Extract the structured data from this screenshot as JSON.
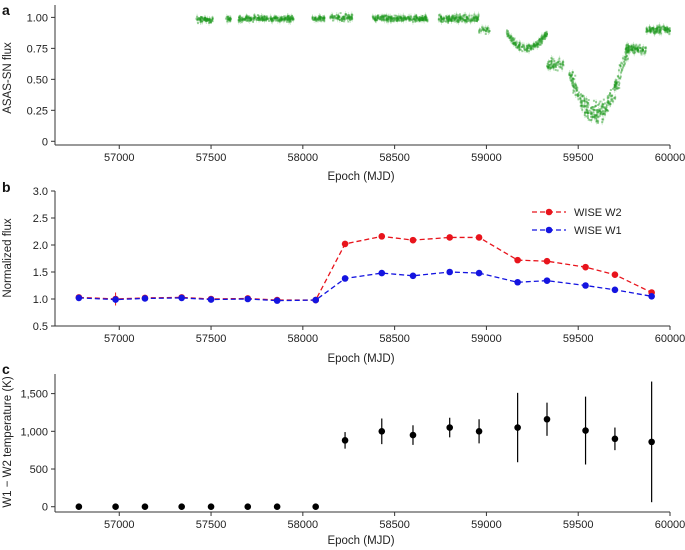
{
  "chart_data": [
    {
      "panel": "a",
      "type": "scatter",
      "xlabel": "Epoch (MJD)",
      "ylabel": "ASAS-SN flux",
      "xlim": [
        56650,
        60000
      ],
      "ylim": [
        -0.03,
        1.1
      ],
      "xticks": [
        57000,
        57500,
        58000,
        58500,
        59000,
        59500,
        60000
      ],
      "xtick_labels": [
        "57000",
        "57500",
        "58000",
        "58500",
        "59000",
        "59500",
        "60000"
      ],
      "yticks": [
        0,
        0.25,
        0.5,
        0.75,
        1.0
      ],
      "ytick_labels": [
        "0",
        "0.25",
        "0.50",
        "0.75",
        "1.00"
      ],
      "color": "#1f9a1f",
      "segments": [
        {
          "x0": 57420,
          "x1": 57510,
          "center": 0.98,
          "noise": 0.035,
          "n": 70,
          "dip": 0
        },
        {
          "x0": 57580,
          "x1": 57610,
          "center": 0.99,
          "noise": 0.03,
          "n": 20,
          "dip": 0
        },
        {
          "x0": 57650,
          "x1": 57950,
          "center": 0.99,
          "noise": 0.035,
          "n": 230,
          "dip": 0
        },
        {
          "x0": 58050,
          "x1": 58120,
          "center": 0.99,
          "noise": 0.03,
          "n": 50,
          "dip": 0
        },
        {
          "x0": 58150,
          "x1": 58270,
          "center": 1.0,
          "noise": 0.04,
          "n": 80,
          "dip": 0
        },
        {
          "x0": 58380,
          "x1": 58680,
          "center": 0.99,
          "noise": 0.035,
          "n": 240,
          "dip": 0
        },
        {
          "x0": 58740,
          "x1": 58960,
          "center": 0.99,
          "noise": 0.04,
          "n": 170,
          "dip": 0
        },
        {
          "x0": 58960,
          "x1": 59020,
          "center": 0.9,
          "noise": 0.04,
          "n": 25,
          "dip": 0
        },
        {
          "x0": 59110,
          "x1": 59330,
          "center": 0.87,
          "noise": 0.05,
          "n": 170,
          "dip": 0.12
        },
        {
          "x0": 59330,
          "x1": 59420,
          "center": 0.62,
          "noise": 0.07,
          "n": 60,
          "dip": 0
        },
        {
          "x0": 59450,
          "x1": 59780,
          "center": 0.35,
          "noise": 0.12,
          "n": 300,
          "dip": 0.2
        },
        {
          "x0": 59760,
          "x1": 59870,
          "center": 0.74,
          "noise": 0.05,
          "n": 90,
          "dip": 0
        },
        {
          "x0": 59870,
          "x1": 60000,
          "center": 0.9,
          "noise": 0.05,
          "n": 110,
          "dip": 0
        }
      ]
    },
    {
      "panel": "b",
      "type": "line",
      "xlabel": "Epoch (MJD)",
      "ylabel": "Normalized flux",
      "xlim": [
        56650,
        60000
      ],
      "ylim": [
        0.5,
        3.0
      ],
      "xticks": [
        57000,
        57500,
        58000,
        58500,
        59000,
        59500,
        60000
      ],
      "xtick_labels": [
        "57000",
        "57500",
        "58000",
        "58500",
        "59000",
        "59500",
        "60000"
      ],
      "yticks": [
        0.5,
        1.0,
        1.5,
        2.0,
        2.5,
        3.0
      ],
      "ytick_labels": [
        "0.5",
        "1.0",
        "1.5",
        "2.0",
        "2.5",
        "3.0"
      ],
      "legend_position": "top-right",
      "x": [
        56780,
        56980,
        57140,
        57340,
        57500,
        57700,
        57860,
        58070,
        58230,
        58430,
        58600,
        58800,
        58960,
        59170,
        59330,
        59540,
        59700,
        59900
      ],
      "series": [
        {
          "name": "WISE W2",
          "color": "#e8141c",
          "values": [
            1.03,
            1.0,
            1.02,
            1.03,
            1.0,
            1.01,
            0.98,
            0.98,
            2.02,
            2.16,
            2.09,
            2.14,
            2.14,
            1.72,
            1.7,
            1.59,
            1.45,
            1.12
          ],
          "errors": [
            0.02,
            0.12,
            0.03,
            0.02,
            0.02,
            0.04,
            0.05,
            0.02,
            0.02,
            0.02,
            0.02,
            0.02,
            0.02,
            0.02,
            0.02,
            0.02,
            0.02,
            0.02
          ]
        },
        {
          "name": "WISE W1",
          "color": "#1414e0",
          "values": [
            1.02,
            0.99,
            1.01,
            1.02,
            0.99,
            1.0,
            0.97,
            0.98,
            1.38,
            1.48,
            1.43,
            1.5,
            1.48,
            1.31,
            1.34,
            1.25,
            1.17,
            1.05
          ],
          "errors": [
            0.02,
            0.06,
            0.02,
            0.02,
            0.02,
            0.03,
            0.04,
            0.02,
            0.02,
            0.02,
            0.02,
            0.02,
            0.02,
            0.02,
            0.02,
            0.02,
            0.02,
            0.02
          ]
        }
      ]
    },
    {
      "panel": "c",
      "type": "scatter",
      "xlabel": "Epoch (MJD)",
      "ylabel": "W1 − W2 temperature (K)",
      "xlim": [
        56650,
        60000
      ],
      "ylim": [
        -70,
        1760
      ],
      "xticks": [
        57000,
        57500,
        58000,
        58500,
        59000,
        59500,
        60000
      ],
      "xtick_labels": [
        "57000",
        "57500",
        "58000",
        "58500",
        "59000",
        "59500",
        "60000"
      ],
      "yticks": [
        0,
        500,
        1000,
        1500
      ],
      "ytick_labels": [
        "0",
        "500",
        "1,000",
        "1,500"
      ],
      "color": "#000000",
      "x": [
        56780,
        56980,
        57140,
        57340,
        57500,
        57700,
        57860,
        58070,
        58230,
        58430,
        58600,
        58800,
        58960,
        59170,
        59330,
        59540,
        59700,
        59900
      ],
      "values": [
        0,
        0,
        0,
        0,
        0,
        0,
        0,
        0,
        880,
        1000,
        950,
        1050,
        1000,
        1050,
        1160,
        1010,
        900,
        860
      ],
      "err_low": [
        0,
        0,
        0,
        0,
        0,
        0,
        0,
        0,
        110,
        170,
        130,
        130,
        160,
        460,
        220,
        450,
        150,
        800
      ],
      "err_high": [
        0,
        0,
        0,
        0,
        0,
        0,
        0,
        0,
        110,
        170,
        130,
        130,
        160,
        460,
        220,
        450,
        150,
        800
      ]
    }
  ]
}
